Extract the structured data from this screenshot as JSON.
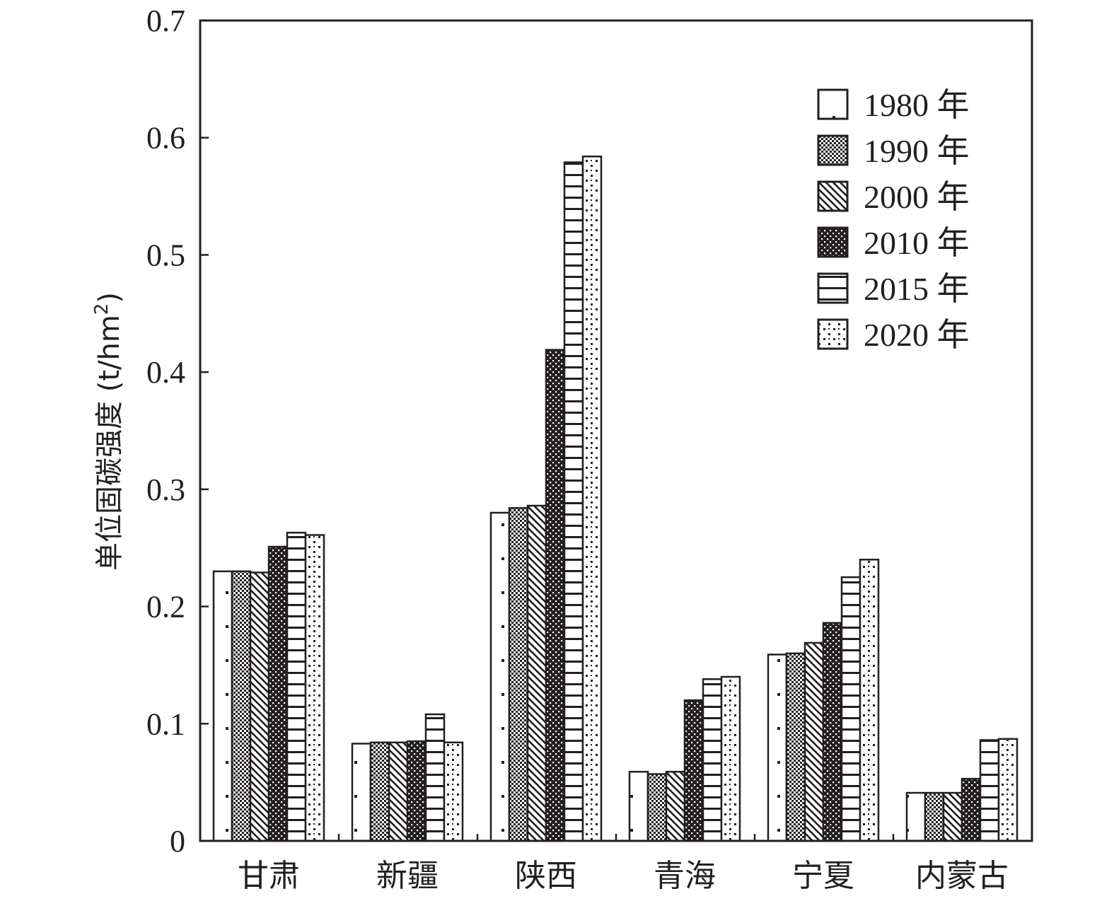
{
  "chart_data": {
    "type": "bar",
    "ylabel_main": "单位固碳强度 (t/hm",
    "ylabel_sup": "2",
    "ylabel_close": ")",
    "ylim": [
      0,
      0.7
    ],
    "yticks": [
      "0",
      "0.1",
      "0.2",
      "0.3",
      "0.4",
      "0.5",
      "0.6",
      "0.7"
    ],
    "categories": [
      "甘肃",
      "新疆",
      "陕西",
      "青海",
      "宁夏",
      "内蒙古"
    ],
    "legend_position": "top-right",
    "series": [
      {
        "name": "1980 年",
        "pattern": "dots",
        "values": [
          0.23,
          0.083,
          0.28,
          0.059,
          0.159,
          0.041
        ]
      },
      {
        "name": "1990 年",
        "pattern": "checker",
        "values": [
          0.23,
          0.084,
          0.284,
          0.057,
          0.16,
          0.041
        ]
      },
      {
        "name": "2000 年",
        "pattern": "diagonal",
        "values": [
          0.229,
          0.084,
          0.286,
          0.059,
          0.169,
          0.041
        ]
      },
      {
        "name": "2010 年",
        "pattern": "dense",
        "values": [
          0.251,
          0.085,
          0.419,
          0.12,
          0.186,
          0.053
        ]
      },
      {
        "name": "2015 年",
        "pattern": "hlines",
        "values": [
          0.263,
          0.108,
          0.579,
          0.138,
          0.225,
          0.086
        ]
      },
      {
        "name": "2020 年",
        "pattern": "dashes",
        "values": [
          0.261,
          0.084,
          0.584,
          0.14,
          0.24,
          0.087
        ]
      }
    ],
    "colors": {
      "ink": "#231f20",
      "background": "#ffffff"
    }
  }
}
